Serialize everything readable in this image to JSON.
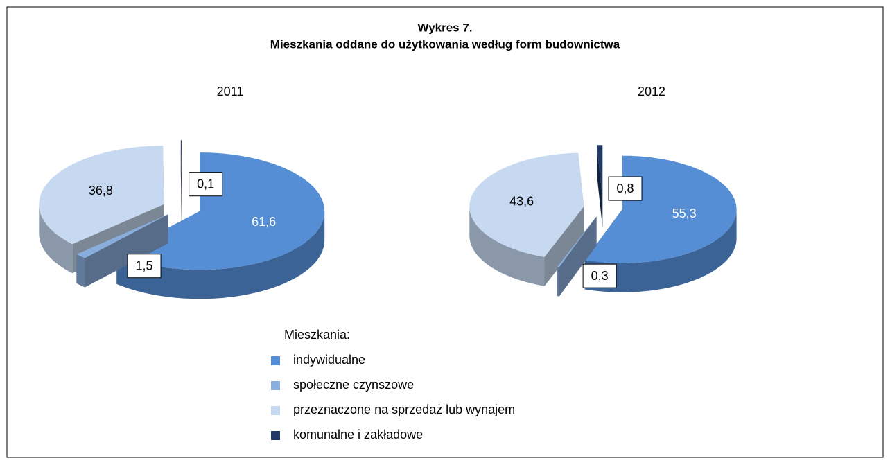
{
  "title": "Wykres 7.",
  "subtitle": "Mieszkania oddane do użytkowania według form budownictwa",
  "legend_title": "Mieszkania:",
  "chart_data": [
    {
      "type": "pie",
      "title": "2011",
      "categories": [
        "indywidualne",
        "społeczne czynszowe",
        "przeznaczone na sprzedaż lub wynajem",
        "komunalne i zakładowe"
      ],
      "values": [
        61.6,
        1.5,
        36.8,
        0.1
      ],
      "value_labels": [
        "61,6",
        "1,5",
        "36,8",
        "0,1"
      ],
      "colors": [
        "#558ed5",
        "#8aaedb",
        "#c6d9f1",
        "#1f3864"
      ]
    },
    {
      "type": "pie",
      "title": "2012",
      "categories": [
        "indywidualne",
        "społeczne czynszowe",
        "przeznaczone na sprzedaż lub wynajem",
        "komunalne i zakładowe"
      ],
      "values": [
        55.3,
        0.3,
        43.6,
        0.8
      ],
      "value_labels": [
        "55,3",
        "0,3",
        "43,6",
        "0,8"
      ],
      "colors": [
        "#558ed5",
        "#8aaedb",
        "#c6d9f1",
        "#1f3864"
      ]
    }
  ]
}
